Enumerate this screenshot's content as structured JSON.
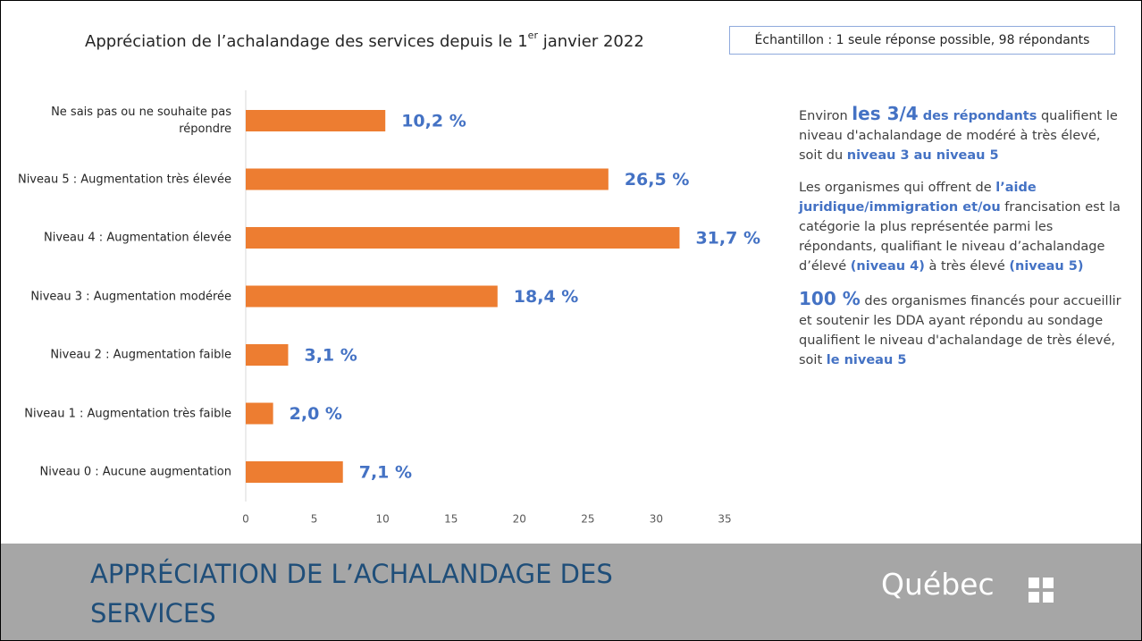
{
  "chart_data": {
    "type": "bar",
    "orientation": "horizontal",
    "title_parts": [
      "Appréciation de l’achalandage des services depuis le 1",
      "er",
      " janvier 2022"
    ],
    "categories": [
      "Ne sais pas ou ne souhaite pas répondre",
      "Niveau 5 : Augmentation très élevée",
      "Niveau 4 : Augmentation élevée",
      "Niveau 3 : Augmentation modérée",
      "Niveau  2 : Augmentation faible",
      "Niveau 1 : Augmentation très faible",
      "Niveau 0 : Aucune augmentation"
    ],
    "values": [
      10.2,
      26.5,
      31.7,
      18.4,
      3.1,
      2.0,
      7.1
    ],
    "value_labels": [
      "10,2 %",
      "26,5 %",
      "31,7 %",
      "18,4 %",
      "3,1 %",
      "2,0 %",
      "7,1 %"
    ],
    "color": "#ed7d31",
    "label_color": "#4472c4",
    "xlim": [
      0,
      35
    ],
    "xticks": [
      0,
      5,
      10,
      15,
      20,
      25,
      30,
      35
    ],
    "grid": false
  },
  "sample_note": "Échantillon : 1 seule réponse possible, 98 répondants",
  "side_notes": [
    [
      {
        "text": "Environ "
      },
      {
        "text": "les 3/4",
        "style": "big"
      },
      {
        "text": " des répondants",
        "style": "strong"
      },
      {
        "text": " qualifient le niveau d'achalandage de modéré à très élevé, soit du "
      },
      {
        "text": "niveau 3 au niveau 5",
        "style": "strong"
      }
    ],
    [
      {
        "text": "Les organismes qui offrent de "
      },
      {
        "text": "l’aide juridique/immigration et/ou",
        "style": "strong"
      },
      {
        "text": " francisation est la catégorie la plus représentée parmi les répondants, qualifiant le niveau d’achalandage d’élevé "
      },
      {
        "text": "(niveau 4)",
        "style": "strong"
      },
      {
        "text": " à très élevé "
      },
      {
        "text": "(niveau 5)",
        "style": "strong"
      }
    ],
    [
      {
        "text": "100 %",
        "style": "big"
      },
      {
        "text": " des organismes financés pour accueillir et soutenir les DDA ayant répondu au sondage qualifient le niveau d'achalandage de très élevé, soit "
      },
      {
        "text": "le niveau 5",
        "style": "strong"
      }
    ]
  ],
  "footer": {
    "title": "APPRÉCIATION DE L’ACHALANDAGE DES SERVICES",
    "logo": "Québec"
  }
}
